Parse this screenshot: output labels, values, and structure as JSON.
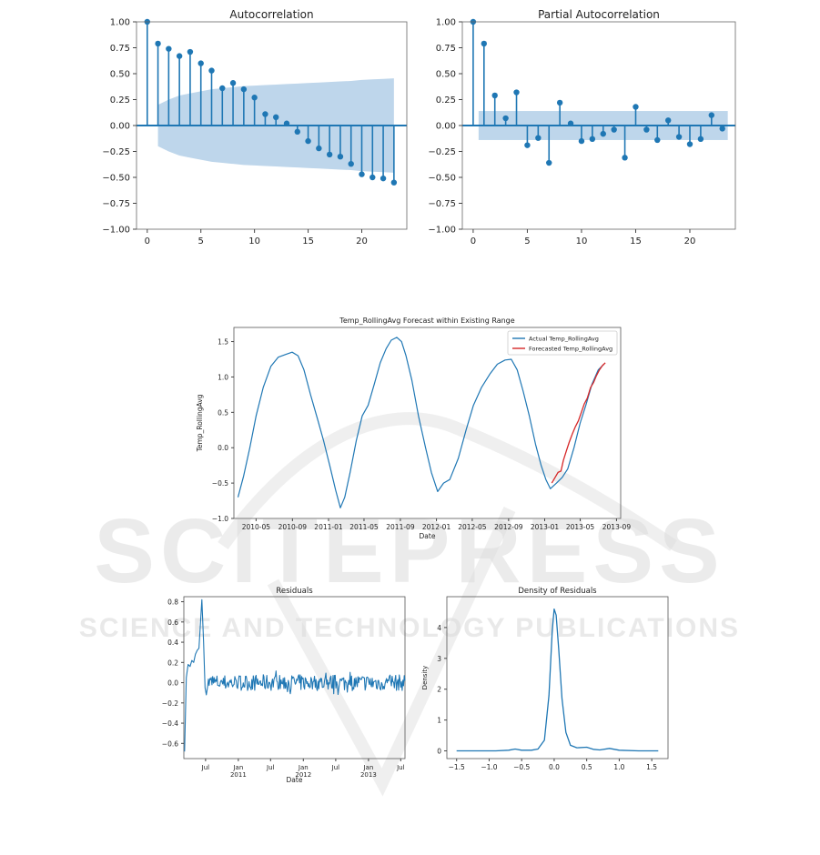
{
  "watermark": {
    "line1": "SCITEPRESS",
    "line2": "SCIENCE AND TECHNOLOGY PUBLICATIONS"
  },
  "colors": {
    "series": "#1f77b4",
    "forecast": "#d62728",
    "band": "#a8c8e4",
    "watermark": "#dcdcdc"
  },
  "chart_data": [
    {
      "type": "bar",
      "title": "Autocorrelation",
      "x": [
        0,
        1,
        2,
        3,
        4,
        5,
        6,
        7,
        8,
        9,
        10,
        11,
        12,
        13,
        14,
        15,
        16,
        17,
        18,
        19,
        20,
        21,
        22,
        23
      ],
      "values": [
        1.0,
        0.79,
        0.74,
        0.67,
        0.71,
        0.6,
        0.53,
        0.36,
        0.41,
        0.35,
        0.27,
        0.11,
        0.08,
        0.02,
        -0.06,
        -0.15,
        -0.22,
        -0.28,
        -0.3,
        -0.37,
        -0.47,
        -0.5,
        -0.51,
        -0.55
      ],
      "confidence_upper": [
        0.15,
        0.2,
        0.25,
        0.29,
        0.31,
        0.33,
        0.35,
        0.36,
        0.37,
        0.38,
        0.385,
        0.39,
        0.395,
        0.4,
        0.405,
        0.41,
        0.415,
        0.42,
        0.425,
        0.43,
        0.44,
        0.445,
        0.45,
        0.455
      ],
      "xlim": [
        -1,
        24.2
      ],
      "ylim": [
        -1.0,
        1.0
      ],
      "xticks": [
        0,
        5,
        10,
        15,
        20
      ],
      "yticks": [
        -1.0,
        -0.75,
        -0.5,
        -0.25,
        0.0,
        0.25,
        0.5,
        0.75,
        1.0
      ],
      "ytick_labels": [
        "−1.00",
        "−0.75",
        "−0.50",
        "−0.25",
        "0.00",
        "0.25",
        "0.50",
        "0.75",
        "1.00"
      ]
    },
    {
      "type": "bar",
      "title": "Partial Autocorrelation",
      "x": [
        0,
        1,
        2,
        3,
        4,
        5,
        6,
        7,
        8,
        9,
        10,
        11,
        12,
        13,
        14,
        15,
        16,
        17,
        18,
        19,
        20,
        21,
        22,
        23
      ],
      "values": [
        1.0,
        0.79,
        0.29,
        0.07,
        0.32,
        -0.19,
        -0.12,
        -0.36,
        0.22,
        0.02,
        -0.15,
        -0.13,
        -0.08,
        -0.04,
        -0.31,
        0.18,
        -0.04,
        -0.14,
        0.05,
        -0.11,
        -0.18,
        -0.13,
        0.1,
        -0.03
      ],
      "confidence": 0.14,
      "xlim": [
        -1,
        24.2
      ],
      "ylim": [
        -1.0,
        1.0
      ],
      "xticks": [
        0,
        5,
        10,
        15,
        20
      ],
      "yticks": [
        -1.0,
        -0.75,
        -0.5,
        -0.25,
        0.0,
        0.25,
        0.5,
        0.75,
        1.0
      ],
      "ytick_labels": [
        "−1.00",
        "−0.75",
        "−0.50",
        "−0.25",
        "0.00",
        "0.25",
        "0.50",
        "0.75",
        "1.00"
      ]
    },
    {
      "type": "line",
      "title": "Temp_RollingAvg Forecast within Existing Range",
      "xlabel": "Date",
      "ylabel": "Temp_RollingAvg",
      "xlim": [
        "2010-02-15",
        "2013-09-15"
      ],
      "ylim": [
        -1.0,
        1.7
      ],
      "xtick_dates": [
        "2010-05-01",
        "2010-09-01",
        "2011-01-01",
        "2011-05-01",
        "2011-09-01",
        "2012-01-01",
        "2012-05-01",
        "2012-09-01",
        "2013-01-01",
        "2013-05-01",
        "2013-09-01"
      ],
      "xtick_labels": [
        "2010-05",
        "2010-09",
        "2011-01",
        "2011-05",
        "2011-09",
        "2012-01",
        "2012-05",
        "2012-09",
        "2013-01",
        "2013-05",
        "2013-09"
      ],
      "yticks": [
        -1.0,
        -0.5,
        0.0,
        0.5,
        1.0,
        1.5
      ],
      "ytick_labels": [
        "−1.0",
        "−0.5",
        "0.0",
        "0.5",
        "1.0",
        "1.5"
      ],
      "legend": "top-right",
      "series": [
        {
          "name": "Actual Temp_RollingAvg",
          "x": [
            "2010-03-01",
            "2010-03-20",
            "2010-04-10",
            "2010-05-01",
            "2010-05-25",
            "2010-06-20",
            "2010-07-15",
            "2010-08-10",
            "2010-08-31",
            "2010-09-20",
            "2010-10-10",
            "2010-11-01",
            "2010-11-25",
            "2010-12-15",
            "2011-01-05",
            "2011-01-25",
            "2011-02-10",
            "2011-02-25",
            "2011-03-15",
            "2011-04-05",
            "2011-04-25",
            "2011-05-15",
            "2011-06-05",
            "2011-06-25",
            "2011-07-15",
            "2011-08-01",
            "2011-08-20",
            "2011-09-05",
            "2011-09-20",
            "2011-10-10",
            "2011-11-01",
            "2011-11-25",
            "2011-12-15",
            "2012-01-05",
            "2012-01-25",
            "2012-02-15",
            "2012-03-15",
            "2012-04-10",
            "2012-05-05",
            "2012-06-01",
            "2012-07-01",
            "2012-07-25",
            "2012-08-20",
            "2012-09-10",
            "2012-09-30",
            "2012-10-20",
            "2012-11-10",
            "2012-12-01",
            "2012-12-20",
            "2013-01-05",
            "2013-01-20",
            "2013-02-10",
            "2013-03-01",
            "2013-03-20",
            "2013-04-10",
            "2013-05-01",
            "2013-05-20",
            "2013-06-10",
            "2013-07-01",
            "2013-07-20"
          ],
          "values": [
            -0.7,
            -0.4,
            0.0,
            0.45,
            0.85,
            1.15,
            1.28,
            1.32,
            1.35,
            1.3,
            1.1,
            0.75,
            0.4,
            0.1,
            -0.25,
            -0.6,
            -0.85,
            -0.7,
            -0.35,
            0.1,
            0.45,
            0.6,
            0.9,
            1.2,
            1.4,
            1.52,
            1.56,
            1.5,
            1.3,
            0.95,
            0.45,
            0.0,
            -0.35,
            -0.62,
            -0.5,
            -0.45,
            -0.15,
            0.25,
            0.6,
            0.85,
            1.05,
            1.18,
            1.24,
            1.25,
            1.1,
            0.8,
            0.45,
            0.05,
            -0.25,
            -0.45,
            -0.58,
            -0.5,
            -0.42,
            -0.3,
            0.0,
            0.35,
            0.6,
            0.9,
            1.1,
            1.18
          ]
        },
        {
          "name": "Forecasted Temp_RollingAvg",
          "x": [
            "2013-01-25",
            "2013-02-05",
            "2013-02-15",
            "2013-02-25",
            "2013-03-05",
            "2013-03-15",
            "2013-03-25",
            "2013-04-05",
            "2013-04-15",
            "2013-04-25",
            "2013-05-05",
            "2013-05-15",
            "2013-05-25",
            "2013-06-05",
            "2013-06-15",
            "2013-06-25",
            "2013-07-05",
            "2013-07-15",
            "2013-07-25"
          ],
          "values": [
            -0.5,
            -0.42,
            -0.35,
            -0.33,
            -0.18,
            -0.05,
            0.08,
            0.2,
            0.3,
            0.38,
            0.5,
            0.62,
            0.7,
            0.85,
            0.92,
            1.02,
            1.1,
            1.16,
            1.2
          ]
        }
      ]
    },
    {
      "type": "line",
      "title": "Residuals",
      "xlabel": "Date",
      "xlim": [
        "2010-03-01",
        "2013-07-25"
      ],
      "ylim": [
        -0.75,
        0.85
      ],
      "yticks": [
        -0.6,
        -0.4,
        -0.2,
        0.0,
        0.2,
        0.4,
        0.6,
        0.8
      ],
      "ytick_labels": [
        "−0.6",
        "−0.4",
        "−0.2",
        "0.0",
        "0.2",
        "0.4",
        "0.6",
        "0.8"
      ],
      "xtick_dates": [
        "2010-07-01",
        "2011-01-01",
        "2011-07-01",
        "2012-01-01",
        "2012-07-01",
        "2013-01-01",
        "2013-07-01"
      ],
      "xtick_labels": [
        "Jul",
        "Jan\n2011",
        "Jul",
        "Jan\n2012",
        "Jul",
        "Jan\n2013",
        "Jul"
      ],
      "series": [
        {
          "x": [
            "2010-03-05",
            "2010-03-15",
            "2010-03-25",
            "2010-04-05",
            "2010-04-15",
            "2010-04-25",
            "2010-05-05",
            "2010-05-15",
            "2010-05-25",
            "2010-06-01",
            "2010-06-10",
            "2010-06-20",
            "2010-06-28",
            "2010-07-05"
          ],
          "values": [
            -0.68,
            0.05,
            0.18,
            0.16,
            0.22,
            0.2,
            0.28,
            0.32,
            0.34,
            0.55,
            0.82,
            0.4,
            -0.05,
            -0.12
          ]
        }
      ],
      "noise_amplitude": 0.08
    },
    {
      "type": "line",
      "title": "Density of Residuals",
      "ylabel": "Density",
      "xlim": [
        -1.65,
        1.75
      ],
      "ylim": [
        -0.25,
        5.0
      ],
      "xticks": [
        -1.5,
        -1.0,
        -0.5,
        0.0,
        0.5,
        1.0,
        1.5
      ],
      "xtick_labels": [
        "−1.5",
        "−1.0",
        "−0.5",
        "0.0",
        "0.5",
        "1.0",
        "1.5"
      ],
      "yticks": [
        0,
        1,
        2,
        3,
        4
      ],
      "ytick_labels": [
        "0",
        "1",
        "2",
        "3",
        "4"
      ],
      "x": [
        -1.5,
        -1.2,
        -0.9,
        -0.7,
        -0.6,
        -0.5,
        -0.35,
        -0.25,
        -0.15,
        -0.08,
        -0.03,
        0.0,
        0.03,
        0.07,
        0.12,
        0.18,
        0.25,
        0.35,
        0.5,
        0.6,
        0.7,
        0.85,
        1.0,
        1.3,
        1.6
      ],
      "values": [
        0.0,
        0.0,
        0.0,
        0.02,
        0.06,
        0.02,
        0.02,
        0.06,
        0.35,
        1.8,
        3.9,
        4.6,
        4.4,
        3.3,
        1.7,
        0.6,
        0.18,
        0.1,
        0.12,
        0.05,
        0.03,
        0.08,
        0.02,
        0.0,
        0.0
      ]
    }
  ]
}
